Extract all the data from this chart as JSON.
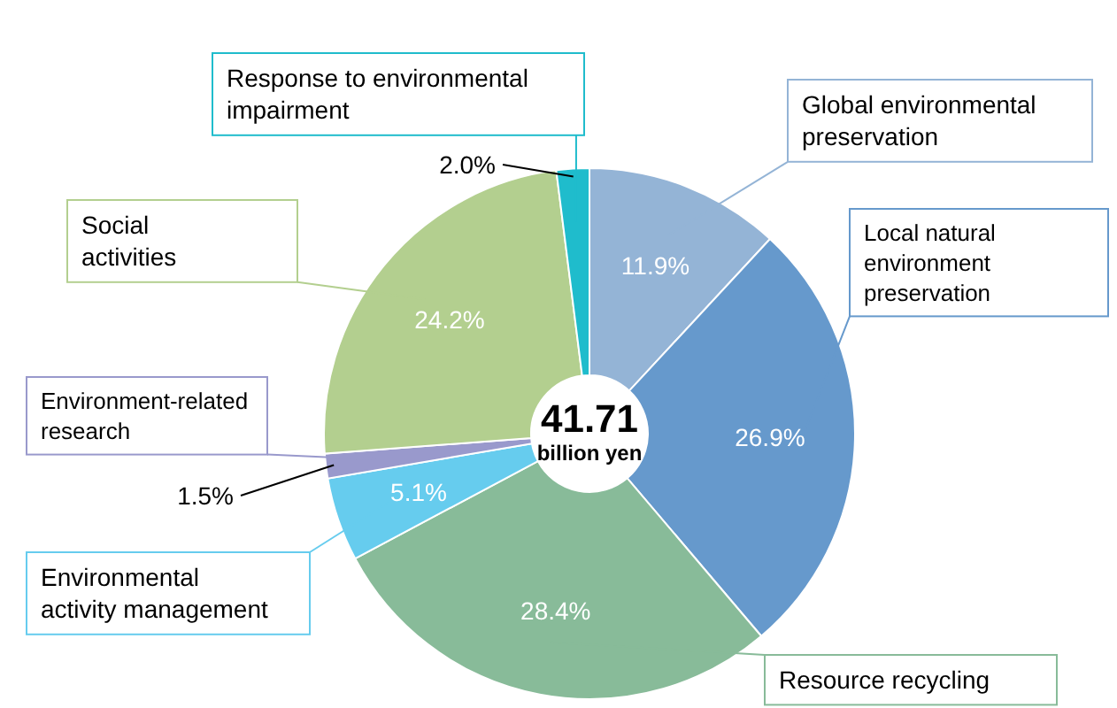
{
  "chart_data": {
    "type": "donut",
    "categories": [
      "Global environmental preservation",
      "Local natural environment preservation",
      "Resource recycling",
      "Environmental activity management",
      "Environment-related research",
      "Social activities",
      "Response to environmental impairment"
    ],
    "values": [
      11.9,
      26.9,
      28.4,
      5.1,
      1.5,
      24.2,
      2.0
    ],
    "value_labels": [
      "11.9%",
      "26.9%",
      "28.4%",
      "5.1%",
      "1.5%",
      "24.2%",
      "2.0%"
    ],
    "colors": [
      "#94b4d6",
      "#6699cc",
      "#88bb99",
      "#66ccee",
      "#9999cc",
      "#b3cf8f",
      "#1fbccc"
    ],
    "annotations": [
      "41.71",
      "billion yen"
    ]
  }
}
